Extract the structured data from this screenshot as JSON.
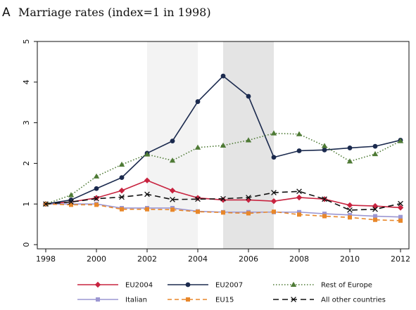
{
  "panel_letter": "A",
  "chart_data": {
    "type": "line",
    "title": "Marriage rates (index=1 in 1998)",
    "xlabel": "",
    "ylabel": "",
    "xlim": [
      1998,
      2012
    ],
    "ylim": [
      0,
      5
    ],
    "x": [
      1998,
      1999,
      2000,
      2001,
      2002,
      2003,
      2004,
      2005,
      2006,
      2007,
      2008,
      2009,
      2010,
      2011,
      2012
    ],
    "x_ticks": [
      1998,
      2000,
      2002,
      2004,
      2006,
      2008,
      2010,
      2012
    ],
    "y_ticks": [
      0,
      1,
      2,
      3,
      4,
      5
    ],
    "grid": false,
    "shaded_periods": [
      {
        "from": 2002,
        "to": 2004,
        "color": "#f3f3f3"
      },
      {
        "from": 2005,
        "to": 2007,
        "color": "#e4e4e4"
      }
    ],
    "legend_placement": "bottom",
    "series": [
      {
        "name": "EU2004",
        "color": "#c8233f",
        "marker": "diamond",
        "dash": "solid",
        "values": [
          1.0,
          1.05,
          1.15,
          1.33,
          1.58,
          1.33,
          1.15,
          1.1,
          1.1,
          1.07,
          1.16,
          1.12,
          0.97,
          0.95,
          0.91
        ]
      },
      {
        "name": "EU2007",
        "color": "#1b2a4e",
        "marker": "circle",
        "dash": "solid",
        "values": [
          1.0,
          1.1,
          1.38,
          1.65,
          2.25,
          2.55,
          3.52,
          4.15,
          3.65,
          2.15,
          2.31,
          2.33,
          2.38,
          2.42,
          2.57
        ]
      },
      {
        "name": "Rest of Europe",
        "color": "#4e7a35",
        "marker": "triangle",
        "dash": "dotted",
        "values": [
          1.0,
          1.22,
          1.68,
          1.97,
          2.22,
          2.07,
          2.39,
          2.44,
          2.57,
          2.74,
          2.72,
          2.43,
          2.05,
          2.23,
          2.55
        ]
      },
      {
        "name": "Italian",
        "color": "#9c97d2",
        "marker": "square",
        "dash": "solid",
        "values": [
          1.0,
          1.0,
          1.0,
          0.9,
          0.9,
          0.9,
          0.82,
          0.8,
          0.8,
          0.8,
          0.8,
          0.76,
          0.73,
          0.7,
          0.68
        ]
      },
      {
        "name": "EU15",
        "color": "#e8872a",
        "marker": "square",
        "dash": "dashed",
        "values": [
          1.0,
          0.98,
          0.98,
          0.87,
          0.87,
          0.86,
          0.81,
          0.79,
          0.77,
          0.81,
          0.74,
          0.7,
          0.67,
          0.61,
          0.59
        ]
      },
      {
        "name": "All other countries",
        "color": "#111111",
        "marker": "x",
        "dash": "longdash",
        "values": [
          1.0,
          1.05,
          1.13,
          1.17,
          1.24,
          1.11,
          1.12,
          1.13,
          1.16,
          1.28,
          1.31,
          1.12,
          0.85,
          0.87,
          1.01
        ]
      }
    ]
  }
}
